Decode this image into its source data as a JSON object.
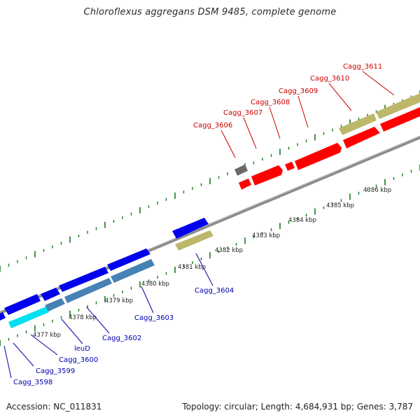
{
  "title": "Chloroflexus aggregans DSM 9485, complete genome",
  "footer": {
    "accession": "Accession: NC_011831",
    "summary": "Topology: circular; Length: 4,684,931 bp; Genes: 3,787"
  },
  "colors": {
    "backbone": "#888888",
    "tick": "#1a7a1a",
    "red_label": "#cc0000",
    "blue_label": "#0000aa",
    "gene_red": "#ff0000",
    "gene_blue": "#0000ee",
    "gene_steel": "#4682b4",
    "gene_cyan": "#00e0f0",
    "gene_khaki": "#bdb76b",
    "gene_gray": "#707070"
  },
  "scale_labels": [
    "4377 kbp",
    "4378 kbp",
    "4379 kbp",
    "4380 kbp",
    "4381 kbp",
    "4382 kbp",
    "4383 kbp",
    "4384 kbp",
    "4385 kbp",
    "4386 kbp"
  ],
  "gene_labels_top": [
    "Cagg_3606",
    "Cagg_3607",
    "Cagg_3608",
    "Cagg_3609",
    "Cagg_3610",
    "Cagg_3611"
  ],
  "gene_labels_bottom": [
    "Cagg_3598",
    "Cagg_3599",
    "Cagg_3600",
    "leuD",
    "Cagg_3602",
    "Cagg_3603",
    "Cagg_3604"
  ]
}
